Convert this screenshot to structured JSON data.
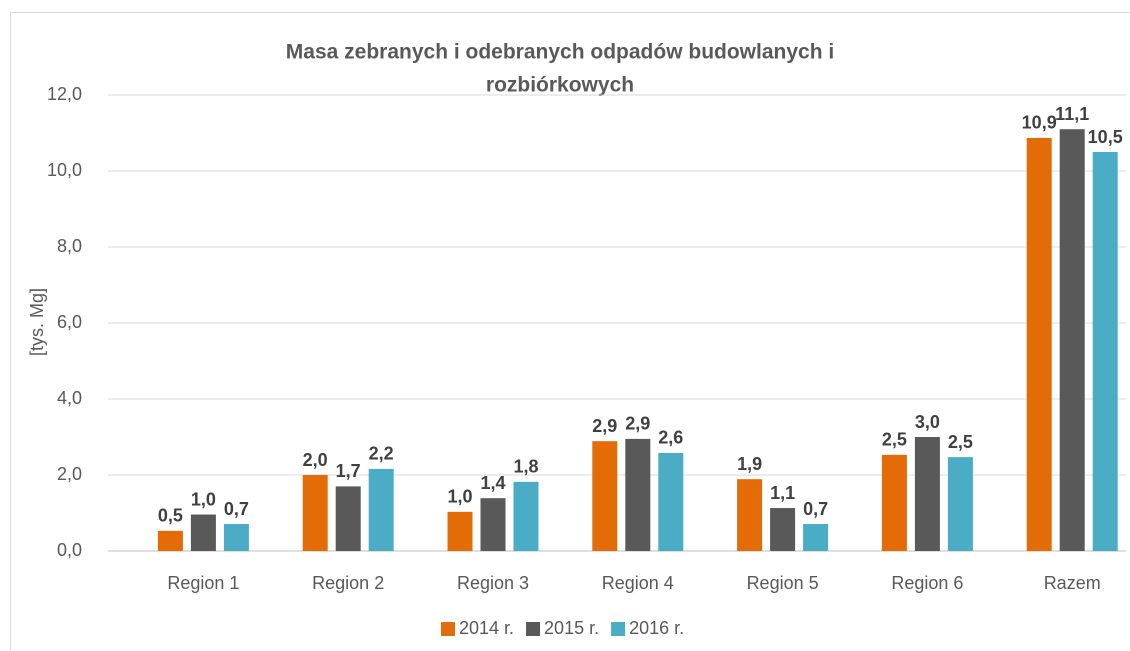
{
  "chart_data": {
    "type": "bar",
    "title": [
      "Masa zebranych i odebranych odpadów budowlanych i",
      "rozbiórkowych"
    ],
    "y_label": "[tys. Mg]",
    "categories": [
      "Region 1",
      "Region 2",
      "Region 3",
      "Region 4",
      "Region 5",
      "Region 6",
      "Razem"
    ],
    "series": [
      {
        "name": "2014 r.",
        "color": "#e36c09",
        "values": [
          0.53,
          2.0,
          1.03,
          2.89,
          1.89,
          2.53,
          10.87
        ],
        "value_labels": [
          "0,5",
          "2,0",
          "1,0",
          "2,9",
          "1,9",
          "2,5",
          "10,9"
        ]
      },
      {
        "name": "2015 r.",
        "color": "#595959",
        "values": [
          0.96,
          1.7,
          1.39,
          2.95,
          1.13,
          3.0,
          11.1
        ],
        "value_labels": [
          "1,0",
          "1,7",
          "1,4",
          "2,9",
          "1,1",
          "3,0",
          "11,1"
        ]
      },
      {
        "name": "2016 r.",
        "color": "#4bacc6",
        "values": [
          0.71,
          2.16,
          1.82,
          2.58,
          0.71,
          2.47,
          10.5
        ],
        "value_labels": [
          "0,7",
          "2,2",
          "1,8",
          "2,6",
          "0,7",
          "2,5",
          "10,5"
        ]
      }
    ],
    "ylim": [
      0,
      12
    ],
    "yticks": [
      {
        "value": 0,
        "label": "0,0"
      },
      {
        "value": 2,
        "label": "2,0"
      },
      {
        "value": 4,
        "label": "4,0"
      },
      {
        "value": 6,
        "label": "6,0"
      },
      {
        "value": 8,
        "label": "8,0"
      },
      {
        "value": 10,
        "label": "10,0"
      },
      {
        "value": 12,
        "label": "12,0"
      }
    ],
    "grid": true,
    "legend": "bottom"
  }
}
